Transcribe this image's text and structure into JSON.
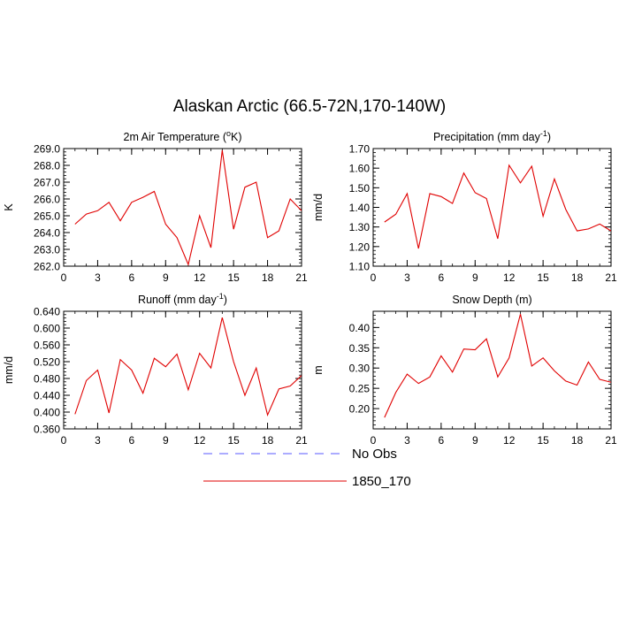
{
  "title": "Alaskan Arctic (66.5-72N,170-140W)",
  "legend": [
    {
      "label": "No Obs",
      "color": "#5a5aff",
      "dash": true
    },
    {
      "label": "1850_170",
      "color": "#e00000",
      "dash": false
    }
  ],
  "chart_data": [
    {
      "type": "line",
      "title_main": "2m Air Temperature (",
      "title_sup": "o",
      "title_end": "K)",
      "ylabel": "K",
      "xlim": [
        0,
        21
      ],
      "ylim": [
        262.0,
        269.0
      ],
      "xticks": [
        0,
        3,
        6,
        9,
        12,
        15,
        18,
        21
      ],
      "yticks": [
        262.0,
        263.0,
        264.0,
        265.0,
        266.0,
        267.0,
        268.0,
        269.0
      ],
      "ytick_labels": [
        "262.0",
        "263.0",
        "264.0",
        "265.0",
        "266.0",
        "267.0",
        "268.0",
        "269.0"
      ],
      "x": [
        1,
        2,
        3,
        4,
        5,
        6,
        7,
        8,
        9,
        10,
        11,
        12,
        13,
        14,
        15,
        16,
        17,
        18,
        19,
        20,
        21
      ],
      "series": [
        {
          "name": "1850_170",
          "color": "#e00000",
          "values": [
            264.5,
            265.1,
            265.3,
            265.8,
            264.7,
            265.8,
            266.1,
            266.45,
            264.5,
            263.7,
            262.1,
            265.0,
            263.1,
            268.9,
            264.2,
            266.7,
            267.0,
            263.7,
            264.1,
            266.0,
            265.3
          ]
        }
      ]
    },
    {
      "type": "line",
      "title_main": "Precipitation (mm day",
      "title_sup": "-1",
      "title_end": ")",
      "ylabel": "mm/d",
      "xlim": [
        0,
        21
      ],
      "ylim": [
        1.1,
        1.7
      ],
      "xticks": [
        0,
        3,
        6,
        9,
        12,
        15,
        18,
        21
      ],
      "yticks": [
        1.1,
        1.2,
        1.3,
        1.4,
        1.5,
        1.6,
        1.7
      ],
      "ytick_labels": [
        "1.10",
        "1.20",
        "1.30",
        "1.40",
        "1.50",
        "1.60",
        "1.70"
      ],
      "x": [
        1,
        2,
        3,
        4,
        5,
        6,
        7,
        8,
        9,
        10,
        11,
        12,
        13,
        14,
        15,
        16,
        17,
        18,
        19,
        20,
        21
      ],
      "series": [
        {
          "name": "1850_170",
          "color": "#e00000",
          "values": [
            1.325,
            1.365,
            1.47,
            1.19,
            1.47,
            1.455,
            1.42,
            1.575,
            1.475,
            1.445,
            1.24,
            1.615,
            1.525,
            1.61,
            1.355,
            1.545,
            1.39,
            1.28,
            1.29,
            1.315,
            1.28
          ]
        }
      ]
    },
    {
      "type": "line",
      "title_main": "Runoff (mm day",
      "title_sup": "-1",
      "title_end": ")",
      "ylabel": "mm/d",
      "xlim": [
        0,
        21
      ],
      "ylim": [
        0.36,
        0.64
      ],
      "xticks": [
        0,
        3,
        6,
        9,
        12,
        15,
        18,
        21
      ],
      "yticks": [
        0.36,
        0.4,
        0.44,
        0.48,
        0.52,
        0.56,
        0.6,
        0.64
      ],
      "ytick_labels": [
        "0.360",
        "0.400",
        "0.440",
        "0.480",
        "0.520",
        "0.560",
        "0.600",
        "0.640"
      ],
      "x": [
        1,
        2,
        3,
        4,
        5,
        6,
        7,
        8,
        9,
        10,
        11,
        12,
        13,
        14,
        15,
        16,
        17,
        18,
        19,
        20,
        21
      ],
      "series": [
        {
          "name": "1850_170",
          "color": "#e00000",
          "values": [
            0.395,
            0.475,
            0.5,
            0.398,
            0.525,
            0.5,
            0.445,
            0.528,
            0.508,
            0.538,
            0.453,
            0.54,
            0.505,
            0.625,
            0.52,
            0.44,
            0.505,
            0.393,
            0.455,
            0.462,
            0.487
          ]
        }
      ]
    },
    {
      "type": "line",
      "title_main": "Snow Depth (m)",
      "title_sup": "",
      "title_end": "",
      "ylabel": "m",
      "xlim": [
        0,
        21
      ],
      "ylim": [
        0.15,
        0.44
      ],
      "xticks": [
        0,
        3,
        6,
        9,
        12,
        15,
        18,
        21
      ],
      "yticks": [
        0.2,
        0.25,
        0.3,
        0.35,
        0.4
      ],
      "ytick_labels": [
        "0.20",
        "0.25",
        "0.30",
        "0.35",
        "0.40"
      ],
      "x": [
        1,
        2,
        3,
        4,
        5,
        6,
        7,
        8,
        9,
        10,
        11,
        12,
        13,
        14,
        15,
        16,
        17,
        18,
        19,
        20,
        21
      ],
      "series": [
        {
          "name": "1850_170",
          "color": "#e00000",
          "values": [
            0.178,
            0.24,
            0.285,
            0.262,
            0.278,
            0.33,
            0.29,
            0.347,
            0.345,
            0.372,
            0.278,
            0.325,
            0.433,
            0.305,
            0.325,
            0.293,
            0.268,
            0.258,
            0.315,
            0.272,
            0.265
          ]
        }
      ]
    }
  ]
}
